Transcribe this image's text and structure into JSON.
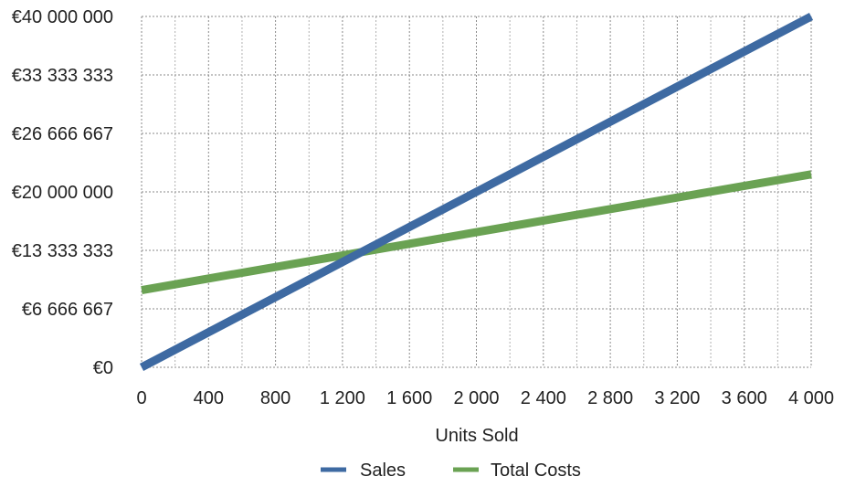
{
  "chart_data": {
    "type": "line",
    "title": "",
    "xlabel": "Units Sold",
    "ylabel": "",
    "xlim": [
      0,
      4000
    ],
    "ylim": [
      0,
      40000000
    ],
    "x_ticks": [
      0,
      400,
      800,
      1200,
      1600,
      2000,
      2400,
      2800,
      3200,
      3600,
      4000
    ],
    "x_tick_labels": [
      "0",
      "400",
      "800",
      "1 200",
      "1 600",
      "2 000",
      "2 400",
      "2 800",
      "3 200",
      "3 600",
      "4 000"
    ],
    "y_ticks": [
      0,
      6666667,
      13333333,
      20000000,
      26666667,
      33333333,
      40000000
    ],
    "y_tick_labels": [
      "€0",
      "€6 666 667",
      "€13 333 333",
      "€20 000 000",
      "€26 666 667",
      "€33 333 333",
      "€40 000 000"
    ],
    "grid": true,
    "legend_position": "bottom",
    "series": [
      {
        "name": "Sales",
        "color": "#3e6aa2",
        "x": [
          0,
          4000
        ],
        "y": [
          0,
          40000000
        ]
      },
      {
        "name": "Total Costs",
        "color": "#6aa253",
        "x": [
          0,
          4000
        ],
        "y": [
          8800000,
          22000000
        ]
      }
    ]
  }
}
